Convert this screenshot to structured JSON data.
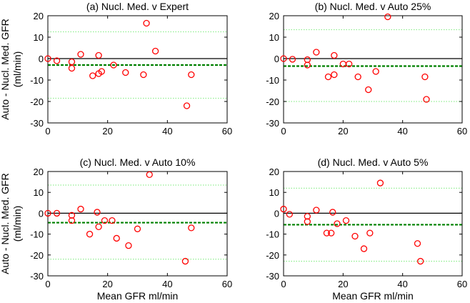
{
  "chart_data": [
    {
      "type": "scatter",
      "title": "(a) Nucl. Med. v Expert",
      "ylabel": [
        "Auto - Nucl. Med. GFR",
        "(ml/min)"
      ],
      "x": [
        0,
        3,
        8,
        8,
        11,
        15,
        17,
        17,
        18,
        22,
        26,
        32,
        33,
        36,
        46.5,
        48
      ],
      "values": [
        0,
        -1,
        -1.5,
        -4.5,
        2,
        -8,
        1.5,
        -7,
        -6,
        -3,
        -6.5,
        -7.5,
        16.5,
        3.5,
        -22,
        -7.5
      ],
      "color": "#ff0000",
      "reference_lines": [
        {
          "value": 0,
          "color": "#000000",
          "dash": "solid"
        },
        {
          "value": -3,
          "color": "#008000",
          "dash": "dashed"
        },
        {
          "value": 12.5,
          "color": "#90ee90",
          "dash": "dotted"
        },
        {
          "value": -18.5,
          "color": "#90ee90",
          "dash": "dotted"
        }
      ],
      "xlim": [
        0,
        60
      ],
      "ylim": [
        -30,
        20
      ],
      "xticks": [
        0,
        20,
        40,
        60
      ],
      "yticks": [
        -30,
        -20,
        -10,
        0,
        10,
        20
      ]
    },
    {
      "type": "scatter",
      "title": "(b) Nucl. Med. v Auto 25%",
      "x": [
        0,
        3,
        8,
        8,
        11,
        15,
        17,
        17,
        20,
        22,
        25,
        28.5,
        31,
        35,
        47.5,
        48
      ],
      "values": [
        0,
        -0.3,
        -0.5,
        -3,
        3,
        -8.5,
        -7.5,
        1.5,
        -2.5,
        -2.5,
        -8.5,
        -14.5,
        -6,
        19.5,
        -8.5,
        -19
      ],
      "color": "#ff0000",
      "reference_lines": [
        {
          "value": 0,
          "color": "#000000",
          "dash": "solid"
        },
        {
          "value": -3.5,
          "color": "#008000",
          "dash": "dashed"
        },
        {
          "value": 13.5,
          "color": "#90ee90",
          "dash": "dotted"
        },
        {
          "value": -20,
          "color": "#90ee90",
          "dash": "dotted"
        }
      ],
      "xlim": [
        0,
        60
      ],
      "ylim": [
        -30,
        20
      ],
      "xticks": [
        0,
        20,
        40,
        60
      ],
      "yticks": [
        -30,
        -20,
        -10,
        0,
        10,
        20
      ]
    },
    {
      "type": "scatter",
      "title": "(c) Nucl. Med. v Auto 10%",
      "ylabel": [
        "Auto - Nucl. Med. GFR",
        "(ml/min)"
      ],
      "xlabel": "Mean GFR ml/min",
      "x": [
        0,
        3,
        8,
        8,
        11,
        14,
        16.5,
        17,
        19,
        21.5,
        23,
        27,
        30,
        34,
        46,
        48
      ],
      "values": [
        0,
        0,
        -1,
        -3.5,
        2,
        -10,
        0.5,
        -6.5,
        -3.5,
        -3.5,
        -12,
        -15.5,
        -7.5,
        18.5,
        -23,
        -7
      ],
      "color": "#ff0000",
      "reference_lines": [
        {
          "value": 0,
          "color": "#000000",
          "dash": "solid"
        },
        {
          "value": -4.5,
          "color": "#008000",
          "dash": "dashed"
        },
        {
          "value": 13.5,
          "color": "#90ee90",
          "dash": "dotted"
        },
        {
          "value": -22,
          "color": "#90ee90",
          "dash": "dotted"
        }
      ],
      "xlim": [
        0,
        60
      ],
      "ylim": [
        -30,
        20
      ],
      "xticks": [
        0,
        20,
        40,
        60
      ],
      "yticks": [
        -30,
        -20,
        -10,
        0,
        10,
        20
      ]
    },
    {
      "type": "scatter",
      "title": "(d) Nucl. Med. v Auto 5%",
      "xlabel": "Mean GFR ml/min",
      "x": [
        0,
        2,
        8,
        8,
        11,
        14.5,
        16,
        16.5,
        18,
        21,
        24,
        27,
        29,
        32.5,
        45,
        46
      ],
      "values": [
        2,
        -0.5,
        -1.5,
        -4,
        1.5,
        -9.5,
        -9.5,
        0.5,
        -5,
        -3.5,
        -11,
        -17,
        -9.5,
        14.5,
        -14.5,
        -23
      ],
      "color": "#ff0000",
      "reference_lines": [
        {
          "value": 0,
          "color": "#000000",
          "dash": "solid"
        },
        {
          "value": -5.5,
          "color": "#008000",
          "dash": "dashed"
        },
        {
          "value": 12,
          "color": "#90ee90",
          "dash": "dotted"
        },
        {
          "value": -23,
          "color": "#90ee90",
          "dash": "dotted"
        }
      ],
      "xlim": [
        0,
        60
      ],
      "ylim": [
        -30,
        20
      ],
      "xticks": [
        0,
        20,
        40,
        60
      ],
      "yticks": [
        -30,
        -20,
        -10,
        0,
        10,
        20
      ]
    }
  ]
}
